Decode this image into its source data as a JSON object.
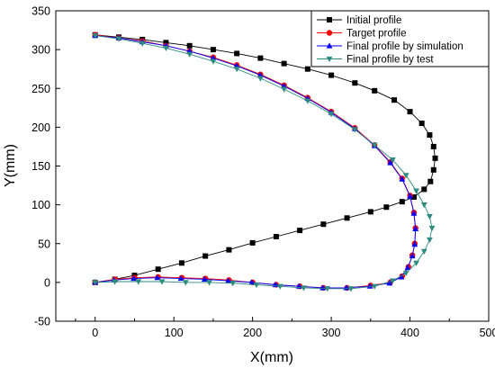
{
  "chart_data": {
    "type": "line",
    "xlabel": "X(mm)",
    "ylabel": "Y(mm)",
    "xlim": [
      -50,
      500
    ],
    "ylim": [
      -50,
      350
    ],
    "xticks": [
      0,
      100,
      200,
      300,
      400,
      500
    ],
    "yticks": [
      -50,
      0,
      50,
      100,
      150,
      200,
      250,
      300,
      350
    ],
    "grid": false,
    "legend_position": "top-right",
    "series": [
      {
        "name": "Initial profile",
        "color": "#000000",
        "marker": "square",
        "points": [
          [
            0,
            319
          ],
          [
            30,
            316
          ],
          [
            60,
            313
          ],
          [
            90,
            309
          ],
          [
            120,
            305
          ],
          [
            150,
            300
          ],
          [
            180,
            295
          ],
          [
            210,
            289
          ],
          [
            240,
            282
          ],
          [
            270,
            275
          ],
          [
            300,
            267
          ],
          [
            330,
            257
          ],
          [
            355,
            247
          ],
          [
            380,
            235
          ],
          [
            400,
            220
          ],
          [
            415,
            205
          ],
          [
            425,
            190
          ],
          [
            430,
            175
          ],
          [
            432,
            160
          ],
          [
            430,
            145
          ],
          [
            426,
            130
          ],
          [
            418,
            120
          ],
          [
            405,
            110
          ],
          [
            390,
            104
          ],
          [
            370,
            97
          ],
          [
            350,
            91
          ],
          [
            320,
            83
          ],
          [
            290,
            75
          ],
          [
            260,
            67
          ],
          [
            230,
            59
          ],
          [
            200,
            51
          ],
          [
            170,
            42
          ],
          [
            140,
            34
          ],
          [
            110,
            25
          ],
          [
            80,
            17
          ],
          [
            50,
            9
          ],
          [
            25,
            4
          ],
          [
            0,
            0
          ]
        ]
      },
      {
        "name": "Target profile",
        "color": "#ff0000",
        "marker": "circle",
        "points": [
          [
            0,
            319
          ],
          [
            30,
            315
          ],
          [
            60,
            311
          ],
          [
            90,
            305
          ],
          [
            120,
            298
          ],
          [
            150,
            290
          ],
          [
            180,
            280
          ],
          [
            210,
            268
          ],
          [
            240,
            254
          ],
          [
            270,
            238
          ],
          [
            300,
            220
          ],
          [
            330,
            199
          ],
          [
            355,
            177
          ],
          [
            375,
            155
          ],
          [
            390,
            134
          ],
          [
            400,
            112
          ],
          [
            405,
            90
          ],
          [
            407,
            70
          ],
          [
            406,
            50
          ],
          [
            403,
            35
          ],
          [
            398,
            20
          ],
          [
            390,
            8
          ],
          [
            375,
            0
          ],
          [
            350,
            -4
          ],
          [
            320,
            -7
          ],
          [
            290,
            -7
          ],
          [
            260,
            -5
          ],
          [
            230,
            -3
          ],
          [
            200,
            0
          ],
          [
            170,
            3
          ],
          [
            140,
            5
          ],
          [
            110,
            6
          ],
          [
            80,
            7
          ],
          [
            50,
            6
          ],
          [
            25,
            4
          ],
          [
            0,
            0
          ]
        ]
      },
      {
        "name": "Final  profile by simulation",
        "color": "#0000ff",
        "marker": "triangle-up",
        "points": [
          [
            0,
            318
          ],
          [
            30,
            315
          ],
          [
            60,
            310
          ],
          [
            90,
            305
          ],
          [
            120,
            298
          ],
          [
            150,
            289
          ],
          [
            180,
            279
          ],
          [
            210,
            267
          ],
          [
            240,
            253
          ],
          [
            270,
            237
          ],
          [
            300,
            219
          ],
          [
            330,
            198
          ],
          [
            355,
            176
          ],
          [
            375,
            154
          ],
          [
            390,
            133
          ],
          [
            400,
            111
          ],
          [
            405,
            89
          ],
          [
            407,
            69
          ],
          [
            406,
            49
          ],
          [
            403,
            34
          ],
          [
            397,
            19
          ],
          [
            389,
            7
          ],
          [
            374,
            -1
          ],
          [
            349,
            -5
          ],
          [
            319,
            -7
          ],
          [
            289,
            -7
          ],
          [
            259,
            -5
          ],
          [
            229,
            -3
          ],
          [
            199,
            0
          ],
          [
            169,
            2
          ],
          [
            139,
            4
          ],
          [
            109,
            5
          ],
          [
            79,
            6
          ],
          [
            49,
            5
          ],
          [
            24,
            3
          ],
          [
            0,
            0
          ]
        ]
      },
      {
        "name": "Final  profile by test",
        "color": "#2e8b80",
        "marker": "triangle-down",
        "points": [
          [
            0,
            318
          ],
          [
            30,
            314
          ],
          [
            60,
            308
          ],
          [
            90,
            302
          ],
          [
            120,
            294
          ],
          [
            150,
            285
          ],
          [
            180,
            275
          ],
          [
            210,
            263
          ],
          [
            240,
            249
          ],
          [
            270,
            234
          ],
          [
            300,
            217
          ],
          [
            330,
            197
          ],
          [
            355,
            177
          ],
          [
            378,
            158
          ],
          [
            395,
            138
          ],
          [
            408,
            118
          ],
          [
            418,
            100
          ],
          [
            425,
            85
          ],
          [
            428,
            70
          ],
          [
            425,
            55
          ],
          [
            418,
            40
          ],
          [
            408,
            25
          ],
          [
            395,
            12
          ],
          [
            378,
            2
          ],
          [
            355,
            -5
          ],
          [
            325,
            -8
          ],
          [
            295,
            -8
          ],
          [
            265,
            -7
          ],
          [
            235,
            -5
          ],
          [
            205,
            -3
          ],
          [
            175,
            -1
          ],
          [
            145,
            0
          ],
          [
            115,
            0
          ],
          [
            85,
            1
          ],
          [
            55,
            1
          ],
          [
            25,
            1
          ],
          [
            0,
            0
          ]
        ]
      }
    ]
  }
}
